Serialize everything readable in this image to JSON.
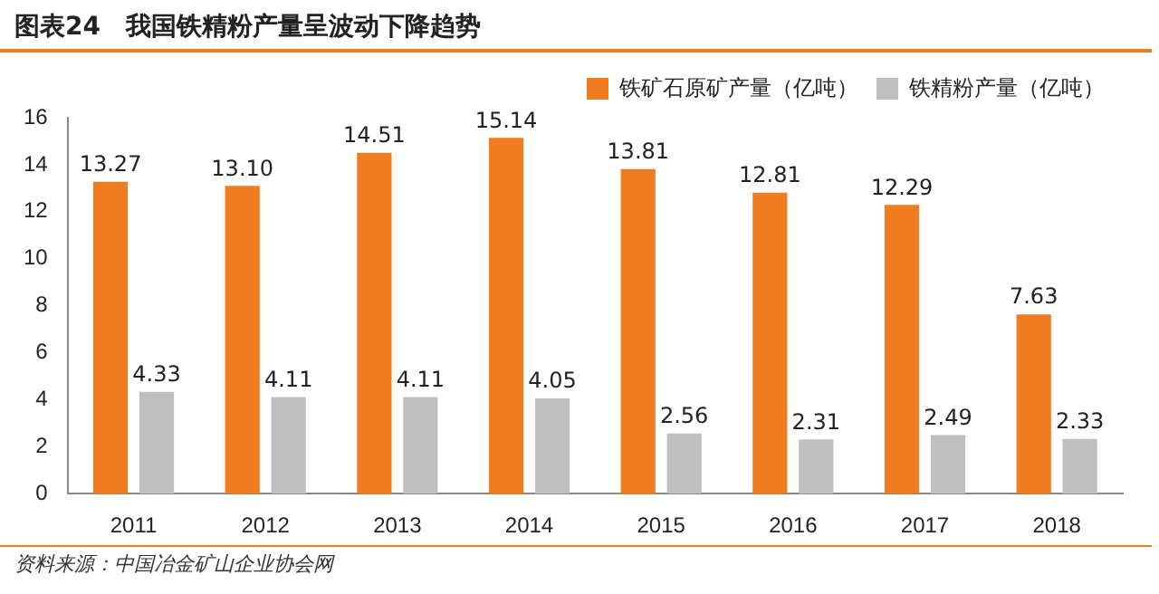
{
  "chart_data": {
    "type": "bar",
    "title": "图表24　我国铁精粉产量呈波动下降趋势",
    "categories": [
      "2011",
      "2012",
      "2013",
      "2014",
      "2015",
      "2016",
      "2017",
      "2018"
    ],
    "series": [
      {
        "name": "铁矿石原矿产量（亿吨）",
        "color": "#f07c22",
        "values": [
          13.27,
          13.1,
          14.51,
          15.14,
          13.81,
          12.81,
          12.29,
          7.63
        ],
        "value_labels": [
          "13.27",
          "13.10",
          "14.51",
          "15.14",
          "13.81",
          "12.81",
          "12.29",
          "7.63"
        ]
      },
      {
        "name": "铁精粉产量（亿吨）",
        "color": "#bfbfbf",
        "values": [
          4.33,
          4.11,
          4.11,
          4.05,
          2.56,
          2.31,
          2.49,
          2.33
        ],
        "value_labels": [
          "4.33",
          "4.11",
          "4.11",
          "4.05",
          "2.56",
          "2.31",
          "2.49",
          "2.33"
        ]
      }
    ],
    "ylim": [
      0,
      16
    ],
    "yticks": [
      0,
      2,
      4,
      6,
      8,
      10,
      12,
      14,
      16
    ],
    "grid": false,
    "legend": "top right",
    "annotations": [
      "资料来源：中国冶金矿山企业协会网"
    ]
  }
}
